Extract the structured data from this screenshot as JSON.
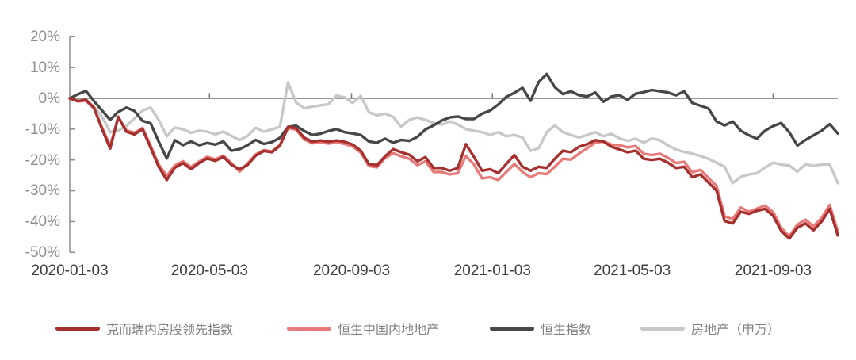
{
  "chart_data": {
    "type": "line",
    "title": "",
    "legend_position": "bottom",
    "grid": "zero-line-only",
    "y_unit": "%",
    "ylim": [
      -50,
      20
    ],
    "y_ticks": [
      20,
      10,
      0,
      -10,
      -20,
      -30,
      -40,
      -50
    ],
    "y_tick_labels": [
      "20%",
      "10%",
      "0%",
      "-10%",
      "-20%",
      "-30%",
      "-40%",
      "-50%"
    ],
    "x_tick_labels": [
      "2020-01-03",
      "2020-05-03",
      "2020-09-03",
      "2021-01-03",
      "2021-05-03",
      "2021-09-03"
    ],
    "x_tick_weeks": [
      0,
      17.286,
      34.857,
      52.286,
      69.571,
      87
    ],
    "x_start": "2020-01-03",
    "frequency": "weekly",
    "dates": [
      "2020-01-03",
      "2020-01-10",
      "2020-01-17",
      "2020-01-24",
      "2020-01-31",
      "2020-02-07",
      "2020-02-14",
      "2020-02-21",
      "2020-02-28",
      "2020-03-06",
      "2020-03-13",
      "2020-03-20",
      "2020-03-27",
      "2020-04-03",
      "2020-04-10",
      "2020-04-17",
      "2020-04-24",
      "2020-05-01",
      "2020-05-08",
      "2020-05-15",
      "2020-05-22",
      "2020-05-29",
      "2020-06-05",
      "2020-06-12",
      "2020-06-19",
      "2020-06-26",
      "2020-07-03",
      "2020-07-10",
      "2020-07-17",
      "2020-07-24",
      "2020-07-31",
      "2020-08-07",
      "2020-08-14",
      "2020-08-21",
      "2020-08-28",
      "2020-09-04",
      "2020-09-11",
      "2020-09-18",
      "2020-09-25",
      "2020-10-02",
      "2020-10-09",
      "2020-10-16",
      "2020-10-23",
      "2020-10-30",
      "2020-11-06",
      "2020-11-13",
      "2020-11-20",
      "2020-11-27",
      "2020-12-04",
      "2020-12-11",
      "2020-12-18",
      "2020-12-25",
      "2021-01-01",
      "2021-01-08",
      "2021-01-15",
      "2021-01-22",
      "2021-01-29",
      "2021-02-05",
      "2021-02-12",
      "2021-02-19",
      "2021-02-26",
      "2021-03-05",
      "2021-03-12",
      "2021-03-19",
      "2021-03-26",
      "2021-04-02",
      "2021-04-09",
      "2021-04-16",
      "2021-04-23",
      "2021-04-30",
      "2021-05-07",
      "2021-05-14",
      "2021-05-21",
      "2021-05-28",
      "2021-06-04",
      "2021-06-11",
      "2021-06-18",
      "2021-06-25",
      "2021-07-02",
      "2021-07-09",
      "2021-07-16",
      "2021-07-23",
      "2021-07-30",
      "2021-08-06",
      "2021-08-13",
      "2021-08-20",
      "2021-08-27",
      "2021-09-03",
      "2021-09-10",
      "2021-09-17",
      "2021-09-24",
      "2021-10-01",
      "2021-10-08",
      "2021-10-15",
      "2021-10-22",
      "2021-10-29"
    ],
    "series": [
      {
        "name": "克而瑞内房股领先指数",
        "color": "#a5302d",
        "values": [
          0,
          -0.9,
          -0.5,
          -3.1,
          -10,
          -16.3,
          -6,
          -10.8,
          -11.7,
          -10,
          -16,
          -22.2,
          -26.5,
          -22.5,
          -21,
          -23,
          -21,
          -19.5,
          -20.3,
          -19,
          -21.6,
          -23,
          -21.6,
          -18.6,
          -17.1,
          -17.5,
          -15.4,
          -9.3,
          -9.7,
          -12.8,
          -14.1,
          -13.7,
          -14.1,
          -13.7,
          -14.1,
          -15,
          -17,
          -21.3,
          -21.7,
          -18.8,
          -16.5,
          -17.5,
          -18.3,
          -20.4,
          -19.1,
          -22.6,
          -22.6,
          -23.5,
          -22.6,
          -14.9,
          -19,
          -23.5,
          -23,
          -24.3,
          -21.3,
          -18.4,
          -22.2,
          -23.5,
          -22.2,
          -22.6,
          -19.6,
          -17,
          -17.5,
          -15.7,
          -14.9,
          -13.6,
          -14,
          -15.7,
          -16.6,
          -17.5,
          -17,
          -19.6,
          -20,
          -19.6,
          -20.9,
          -22.6,
          -22.2,
          -25.6,
          -24.7,
          -27.3,
          -29.9,
          -39.8,
          -40.6,
          -36.8,
          -37.5,
          -36.5,
          -35.9,
          -38.1,
          -43,
          -45.5,
          -42,
          -40.6,
          -42.8,
          -40,
          -35.9,
          -44.5
        ]
      },
      {
        "name": "恒生中国内地地产",
        "color": "#e87a7a",
        "values": [
          0,
          -1,
          -0.8,
          -3.3,
          -9.5,
          -15.5,
          -6.3,
          -10.4,
          -11.2,
          -9.6,
          -15.3,
          -21.5,
          -25.2,
          -21.8,
          -20.4,
          -22.3,
          -20.5,
          -19,
          -19.8,
          -18.6,
          -21,
          -23.8,
          -21.2,
          -18.2,
          -16.8,
          -17.2,
          -15.1,
          -9.6,
          -10.2,
          -13.3,
          -14.6,
          -14.2,
          -14.7,
          -14.3,
          -14.8,
          -15.6,
          -17.6,
          -22,
          -22.4,
          -19.4,
          -17.8,
          -18.8,
          -19.6,
          -21.7,
          -20.4,
          -23.9,
          -23.9,
          -24.7,
          -24.3,
          -18.7,
          -21.5,
          -26,
          -25.6,
          -26.5,
          -23.9,
          -21.3,
          -23.9,
          -25.6,
          -24.3,
          -24.6,
          -22.2,
          -19.6,
          -19.9,
          -17.9,
          -16.2,
          -14.4,
          -14,
          -15,
          -15.2,
          -15.9,
          -15.5,
          -18,
          -18.4,
          -18,
          -19.3,
          -21,
          -20.6,
          -24,
          -23.2,
          -25.8,
          -28.4,
          -38.3,
          -39.2,
          -35.4,
          -36.8,
          -35.8,
          -34.8,
          -36.9,
          -42,
          -44.8,
          -41,
          -39.4,
          -41.5,
          -38.8,
          -34.6,
          -43.2
        ]
      },
      {
        "name": "恒生指数",
        "color": "#474747",
        "values": [
          0,
          1.3,
          2.4,
          -0.9,
          -4,
          -7,
          -4.4,
          -3,
          -4.1,
          -7.3,
          -8.1,
          -14,
          -19.5,
          -13.6,
          -15.2,
          -14,
          -15.2,
          -14.5,
          -15,
          -14,
          -17,
          -16.5,
          -15.2,
          -13.5,
          -14.8,
          -14.2,
          -12.8,
          -9.3,
          -8.9,
          -10.6,
          -11.9,
          -11.5,
          -10.6,
          -10,
          -11,
          -11.4,
          -11.9,
          -14,
          -14.4,
          -13.1,
          -14.4,
          -13.5,
          -13.8,
          -12.5,
          -10.1,
          -8.8,
          -7.2,
          -6.2,
          -5.9,
          -6.7,
          -6.7,
          -5,
          -4,
          -2,
          0.5,
          1.8,
          3.4,
          -0.8,
          5.3,
          7.9,
          3.6,
          1.4,
          2.3,
          1,
          0.6,
          1.9,
          -1.1,
          0.6,
          1,
          -0.5,
          1.5,
          2,
          2.7,
          2.3,
          1.9,
          1,
          2.3,
          -1.5,
          -2.4,
          -3.3,
          -7.5,
          -8.8,
          -7.5,
          -10.5,
          -12,
          -13.1,
          -10.5,
          -9,
          -8,
          -11,
          -15.3,
          -13.5,
          -12,
          -10.5,
          -8.4,
          -11.4
        ]
      },
      {
        "name": "房地产（申万）",
        "color": "#c8c8c8",
        "values": [
          0,
          -0.8,
          -0.5,
          -2.7,
          -6,
          -11,
          -10.5,
          -9,
          -6.5,
          -4,
          -3,
          -7,
          -12.3,
          -9.5,
          -10,
          -11.2,
          -10.5,
          -10.8,
          -11.7,
          -10.8,
          -12.2,
          -13.5,
          -12.2,
          -9.6,
          -10.8,
          -10.1,
          -9.2,
          5.2,
          -1.4,
          -3.2,
          -2.7,
          -2.3,
          -1.9,
          0.9,
          0.3,
          -1.5,
          0.8,
          -4.5,
          -5.5,
          -5,
          -6,
          -9.3,
          -7,
          -6.2,
          -7,
          -8,
          -8.5,
          -7.5,
          -8.5,
          -10,
          -10.5,
          -11,
          -11.9,
          -11,
          -12.3,
          -11.9,
          -12.7,
          -17,
          -16.2,
          -11,
          -8.8,
          -11,
          -11.9,
          -12.7,
          -11.9,
          -11,
          -12.3,
          -11.5,
          -13,
          -13.8,
          -13.1,
          -14.4,
          -13,
          -13.6,
          -15.3,
          -16.6,
          -17.4,
          -17.9,
          -18.7,
          -19.6,
          -20.9,
          -22.2,
          -27.5,
          -25.5,
          -24.7,
          -24.3,
          -22.5,
          -20.9,
          -21.5,
          -21.8,
          -23.8,
          -21.4,
          -21.9,
          -21.5,
          -21.4,
          -27.5
        ]
      }
    ],
    "axis_colors": {
      "y_labels": "#8f8f8f",
      "x_labels": "#3d3d3d",
      "axis_line": "#8c8c8c",
      "zero_line": "#737373"
    }
  }
}
